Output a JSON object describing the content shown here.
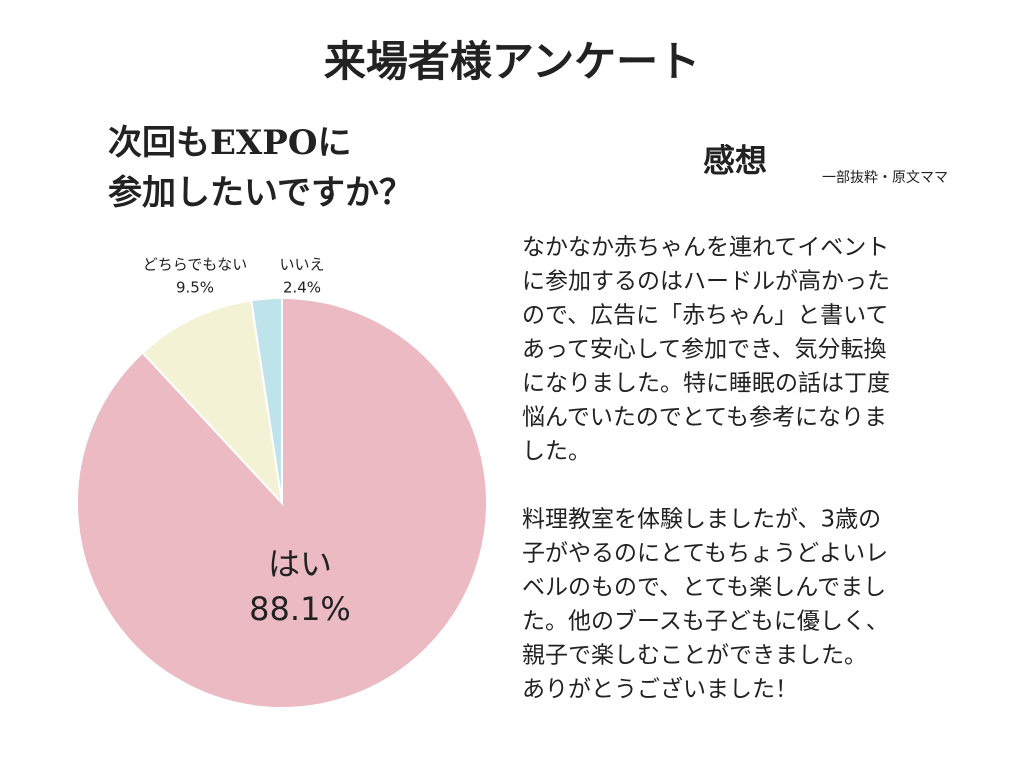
{
  "header": {
    "title": "来場者様アンケート"
  },
  "chart_data": {
    "type": "pie",
    "title": [
      "次回もEXPOに",
      "参加したいですか？"
    ],
    "categories": [
      "はい",
      "どちらでもない",
      "いいえ"
    ],
    "values": [
      88.1,
      9.5,
      2.4
    ],
    "value_labels": [
      "88.1%",
      "9.5%",
      "2.4%"
    ],
    "colors": [
      "#ebbac2",
      "#f3f2d4",
      "#bfe3ea"
    ]
  },
  "comments": {
    "title": "感想",
    "note": "一部抜粋・原文ママ",
    "paragraphs": [
      [
        "なかなか赤ちゃんを連れてイベント",
        "に参加するのはハードルが高かった",
        "ので、広告に「赤ちゃん」と書いて",
        "あって安心して参加でき、気分転換",
        "になりました。特に睡眠の話は丁度",
        "悩んでいたのでとても参考になりま",
        "した。"
      ],
      [
        "料理教室を体験しましたが、3歳の",
        "子がやるのにとてもちょうどよいレ",
        "ベルのもので、とても楽しんでまし",
        "た。他のブースも子どもに優しく、",
        "親子で楽しむことができました。",
        "ありがとうございました！"
      ]
    ]
  }
}
